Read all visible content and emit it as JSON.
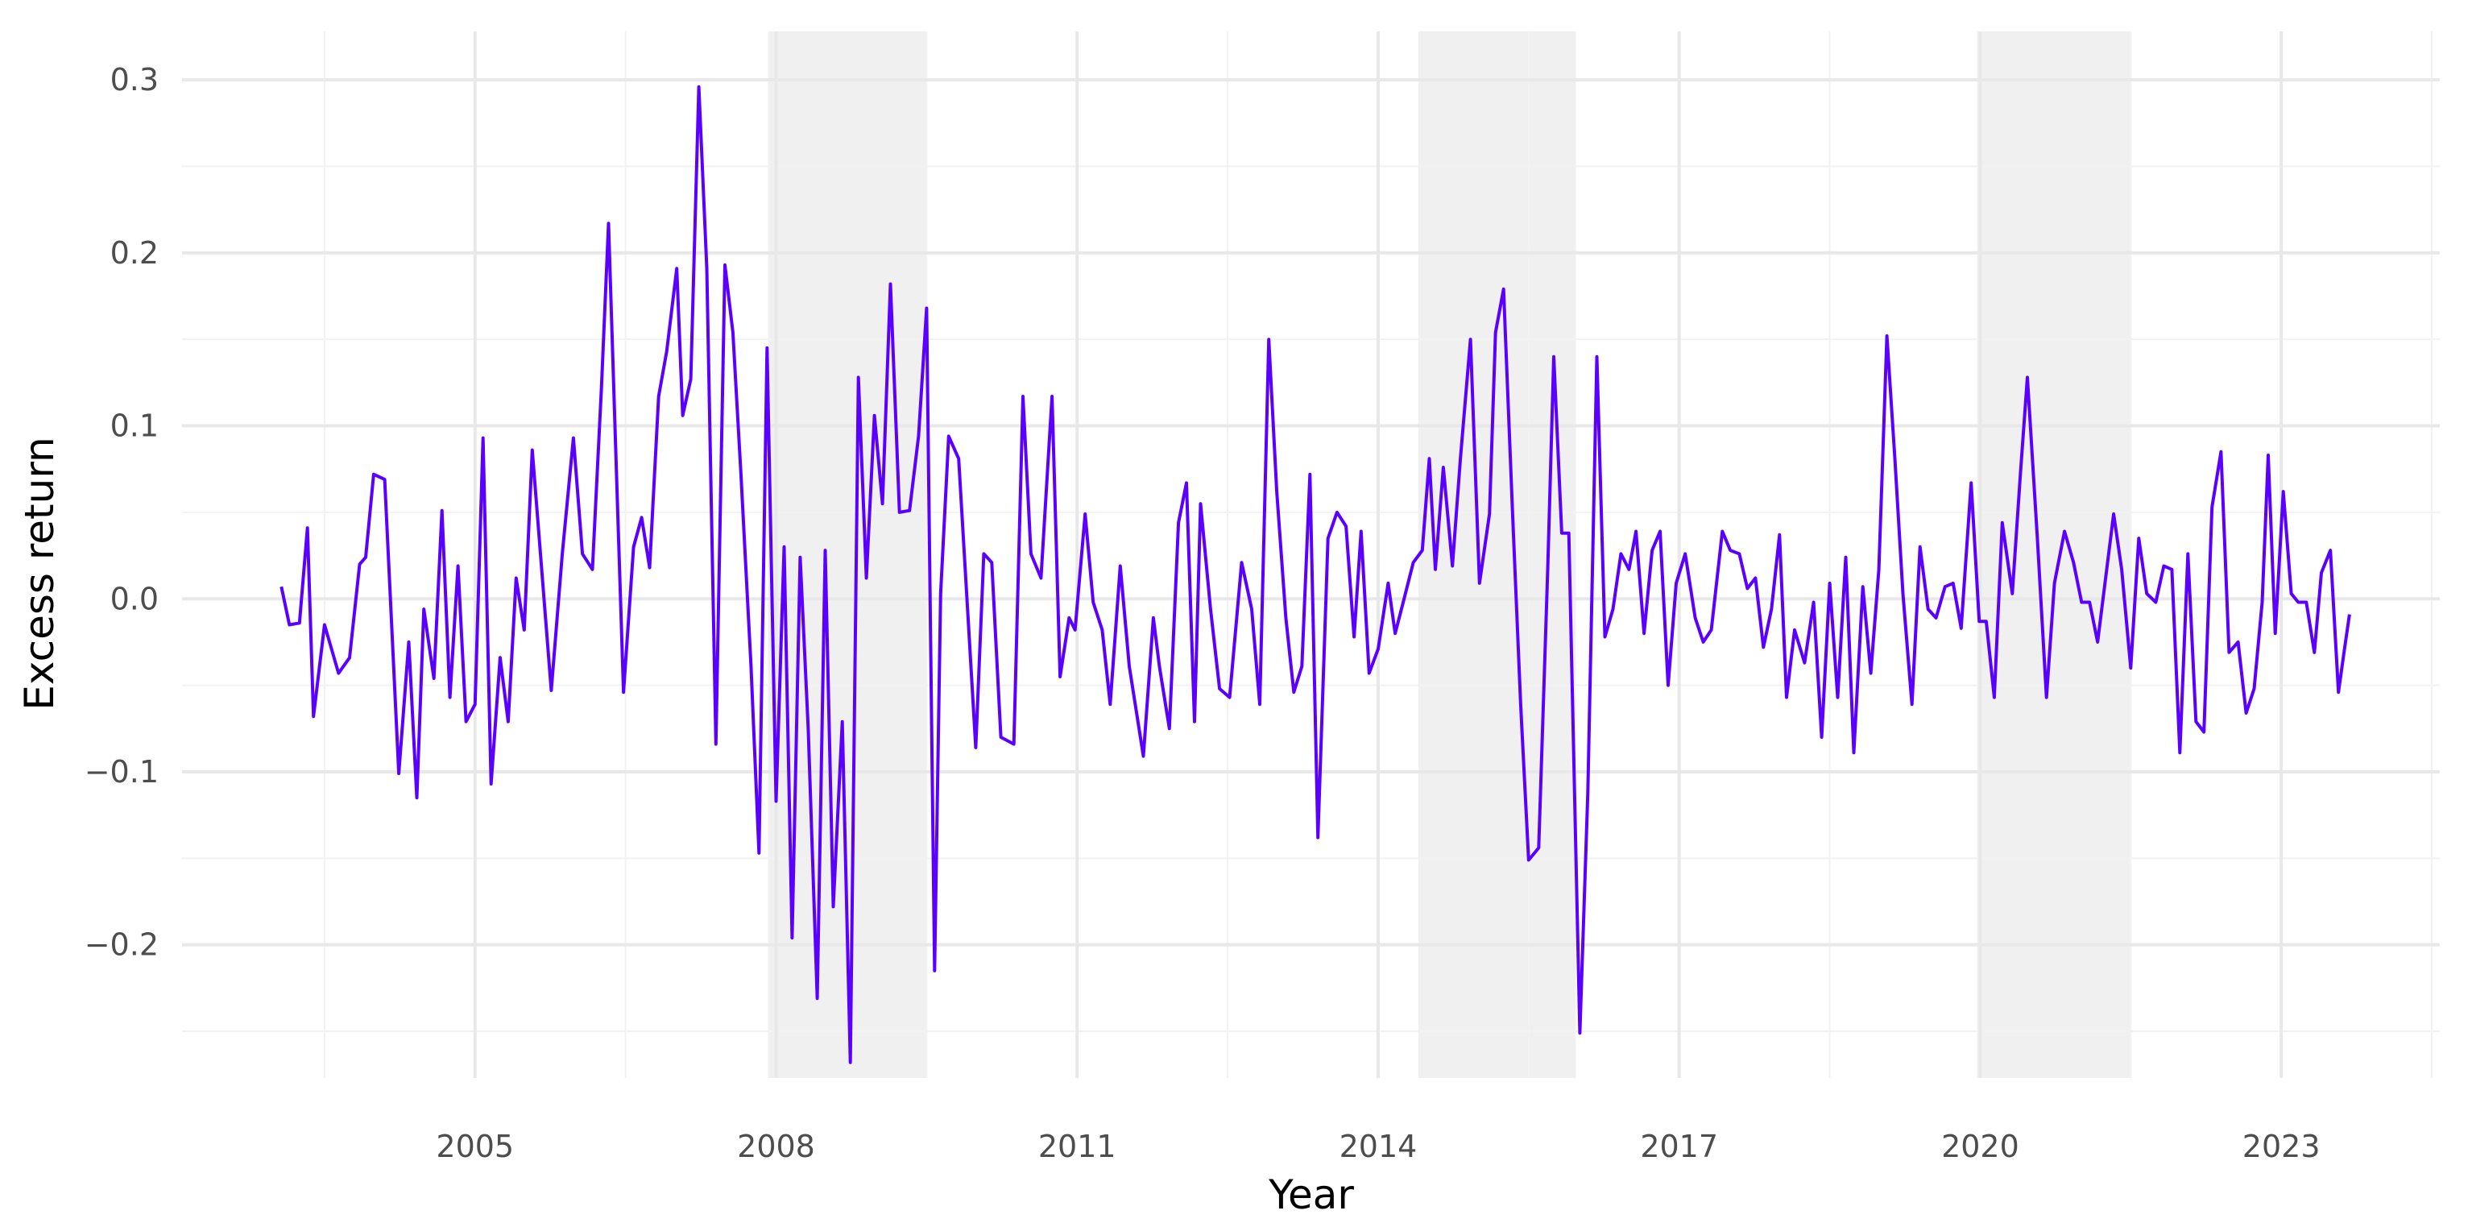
{
  "chart_data": {
    "type": "line",
    "x_label": "Year",
    "y_label": "Excess return",
    "color": "#5a00ff",
    "shaded_regions": [
      [
        2007.92,
        2009.5
      ],
      [
        2014.4,
        2015.97
      ],
      [
        2019.97,
        2021.5
      ]
    ],
    "shade_color": "#f0f0f0",
    "grid": true,
    "xlim": [
      2002.08,
      2024.58
    ],
    "xticks": [
      2005,
      2008,
      2011,
      2014,
      2017,
      2020,
      2023
    ],
    "x_minor_ticks": [
      2003.5,
      2006.5,
      2009.5,
      2012.5,
      2015.5,
      2018.5,
      2021.5,
      2024.5
    ],
    "ylim": [
      -0.277,
      0.328
    ],
    "yticks": [
      {
        "value": -0.2,
        "label": "−0.2"
      },
      {
        "value": -0.1,
        "label": "−0.1"
      },
      {
        "value": 0,
        "label": "0.0"
      },
      0.1,
      0.2,
      0.3
    ],
    "y_minor_ticks": [
      -0.25,
      -0.15,
      -0.05,
      0.05,
      0.15,
      0.25
    ],
    "x": [
      2003.07,
      2003.15,
      2003.25,
      2003.33,
      2003.39,
      2003.5,
      2003.64,
      2003.75,
      2003.85,
      2003.91,
      2003.99,
      2004.1,
      2004.24,
      2004.34,
      2004.42,
      2004.49,
      2004.59,
      2004.67,
      2004.75,
      2004.83,
      2004.91,
      2005.0,
      2005.08,
      2005.16,
      2005.25,
      2005.33,
      2005.41,
      2005.49,
      2005.57,
      2005.76,
      2005.87,
      2005.98,
      2006.07,
      2006.17,
      2006.26,
      2006.33,
      2006.41,
      2006.48,
      2006.58,
      2006.66,
      2006.74,
      2006.83,
      2006.91,
      2007.01,
      2007.07,
      2007.15,
      2007.23,
      2007.31,
      2007.4,
      2007.49,
      2007.57,
      2007.65,
      2007.75,
      2007.83,
      2007.91,
      2008.0,
      2008.08,
      2008.16,
      2008.24,
      2008.32,
      2008.41,
      2008.49,
      2008.57,
      2008.66,
      2008.74,
      2008.82,
      2008.9,
      2008.98,
      2009.06,
      2009.14,
      2009.23,
      2009.33,
      2009.42,
      2009.5,
      2009.58,
      2009.64,
      2009.72,
      2009.82,
      2009.99,
      2010.07,
      2010.15,
      2010.24,
      2010.37,
      2010.46,
      2010.54,
      2010.64,
      2010.75,
      2010.83,
      2010.92,
      2010.98,
      2011.08,
      2011.16,
      2011.25,
      2011.33,
      2011.43,
      2011.52,
      2011.66,
      2011.76,
      2011.82,
      2011.92,
      2012.01,
      2012.09,
      2012.17,
      2012.23,
      2012.33,
      2012.42,
      2012.52,
      2012.64,
      2012.74,
      2012.82,
      2012.91,
      2012.99,
      2013.08,
      2013.16,
      2013.24,
      2013.32,
      2013.4,
      2013.5,
      2013.59,
      2013.68,
      2013.76,
      2013.83,
      2013.91,
      2014.0,
      2014.1,
      2014.17,
      2014.25,
      2014.35,
      2014.44,
      2014.51,
      2014.57,
      2014.65,
      2014.74,
      2014.82,
      2014.92,
      2015.01,
      2015.11,
      2015.17,
      2015.25,
      2015.34,
      2015.42,
      2015.5,
      2015.6,
      2015.69,
      2015.75,
      2015.83,
      2015.9,
      2016.01,
      2016.09,
      2016.18,
      2016.26,
      2016.34,
      2016.42,
      2016.5,
      2016.57,
      2016.65,
      2016.73,
      2016.81,
      2016.89,
      2016.97,
      2017.06,
      2017.16,
      2017.24,
      2017.32,
      2017.43,
      2017.51,
      2017.6,
      2017.68,
      2017.76,
      2017.84,
      2017.92,
      2018.0,
      2018.07,
      2018.15,
      2018.25,
      2018.34,
      2018.42,
      2018.5,
      2018.58,
      2018.66,
      2018.74,
      2018.83,
      2018.91,
      2018.99,
      2019.07,
      2019.15,
      2019.23,
      2019.32,
      2019.4,
      2019.48,
      2019.56,
      2019.65,
      2019.73,
      2019.81,
      2019.91,
      2019.99,
      2020.06,
      2020.14,
      2020.22,
      2020.32,
      2020.4,
      2020.47,
      2020.57,
      2020.66,
      2020.74,
      2020.84,
      2020.93,
      2021.01,
      2021.09,
      2021.17,
      2021.33,
      2021.41,
      2021.5,
      2021.58,
      2021.66,
      2021.75,
      2021.83,
      2021.91,
      2021.99,
      2022.07,
      2022.15,
      2022.23,
      2022.31,
      2022.4,
      2022.48,
      2022.57,
      2022.65,
      2022.73,
      2022.81,
      2022.87,
      2022.94,
      2023.02,
      2023.1,
      2023.17,
      2023.25,
      2023.33,
      2023.4,
      2023.49,
      2023.57,
      2023.63,
      2023.68
    ],
    "values": [
      0.007,
      -0.015,
      -0.014,
      0.041,
      -0.068,
      -0.015,
      -0.043,
      -0.034,
      0.02,
      0.024,
      0.072,
      0.069,
      -0.101,
      -0.025,
      -0.115,
      -0.006,
      -0.046,
      0.051,
      -0.057,
      0.019,
      -0.071,
      -0.061,
      0.093,
      -0.107,
      -0.034,
      -0.071,
      0.012,
      -0.018,
      0.086,
      -0.053,
      0.026,
      0.093,
      0.026,
      0.017,
      0.122,
      0.217,
      0.072,
      -0.054,
      0.03,
      0.047,
      0.018,
      0.117,
      0.143,
      0.191,
      0.106,
      0.127,
      0.296,
      0.191,
      -0.084,
      0.193,
      0.154,
      0.072,
      -0.039,
      -0.147,
      0.145,
      -0.117,
      0.03,
      -0.196,
      0.024,
      -0.075,
      -0.231,
      0.028,
      -0.178,
      -0.071,
      -0.268,
      0.128,
      0.012,
      0.106,
      0.055,
      0.182,
      0.05,
      0.051,
      0.094,
      0.168,
      -0.215,
      0.003,
      0.094,
      0.081,
      -0.086,
      0.026,
      0.021,
      -0.08,
      -0.084,
      0.117,
      0.026,
      0.012,
      0.117,
      -0.045,
      -0.011,
      -0.018,
      0.049,
      -0.002,
      -0.018,
      -0.061,
      0.019,
      -0.039,
      -0.091,
      -0.011,
      -0.039,
      -0.075,
      0.044,
      0.067,
      -0.071,
      0.055,
      -0.006,
      -0.052,
      -0.057,
      0.021,
      -0.006,
      -0.061,
      0.15,
      0.062,
      -0.011,
      -0.054,
      -0.039,
      0.072,
      -0.138,
      0.035,
      0.05,
      0.042,
      -0.022,
      0.039,
      -0.043,
      -0.029,
      0.009,
      -0.02,
      -0.002,
      0.021,
      0.028,
      0.081,
      0.017,
      0.076,
      0.019,
      0.081,
      0.15,
      0.009,
      0.049,
      0.154,
      0.179,
      0.049,
      -0.061,
      -0.151,
      -0.144,
      0.017,
      0.14,
      0.038,
      0.038,
      -0.251,
      -0.112,
      0.14,
      -0.022,
      -0.006,
      0.026,
      0.017,
      0.039,
      -0.02,
      0.028,
      0.039,
      -0.05,
      0.009,
      0.026,
      -0.011,
      -0.025,
      -0.018,
      0.039,
      0.028,
      0.026,
      0.006,
      0.012,
      -0.028,
      -0.006,
      0.037,
      -0.057,
      -0.018,
      -0.037,
      -0.002,
      -0.08,
      0.009,
      -0.057,
      0.024,
      -0.089,
      0.007,
      -0.043,
      0.017,
      0.152,
      0.081,
      0.003,
      -0.061,
      0.03,
      -0.006,
      -0.011,
      0.007,
      0.009,
      -0.017,
      0.067,
      -0.013,
      -0.013,
      -0.057,
      0.044,
      0.003,
      0.072,
      0.128,
      0.035,
      -0.057,
      0.009,
      0.039,
      0.021,
      -0.002,
      -0.002,
      -0.025,
      0.049,
      0.017,
      -0.04,
      0.035,
      0.003,
      -0.002,
      0.019,
      0.017,
      -0.089,
      0.026,
      -0.071,
      -0.077,
      0.053,
      0.085,
      -0.031,
      -0.025,
      -0.066,
      -0.052,
      -0.002,
      0.083,
      -0.02,
      0.062,
      0.003,
      -0.002,
      -0.002,
      -0.031,
      0.015,
      0.028,
      -0.054,
      -0.029,
      -0.009
    ]
  }
}
